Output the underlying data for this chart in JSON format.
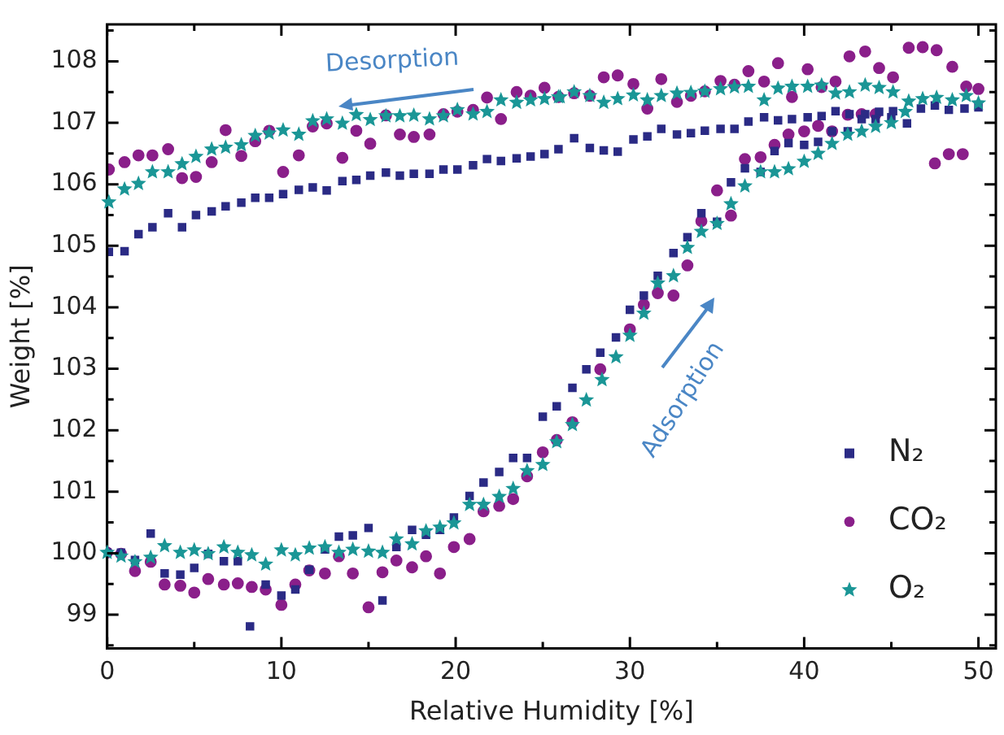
{
  "chart_data": {
    "type": "scatter",
    "xlabel": "Relative Humidity [%]",
    "ylabel": "Weight [%]",
    "xlim": [
      0,
      51
    ],
    "ylim": [
      98.45,
      108.6
    ],
    "xticks": [
      0,
      {
        "value": 5,
        "label": null
      },
      10,
      {
        "value": 15,
        "label": null
      },
      20,
      {
        "value": 25,
        "label": null
      },
      30,
      {
        "value": 35,
        "label": null
      },
      40,
      {
        "value": 45,
        "label": null
      },
      50
    ],
    "yticks": [
      {
        "value": 98.5,
        "label": null
      },
      99,
      {
        "value": 99.5,
        "label": null
      },
      100,
      {
        "value": 100.5,
        "label": null
      },
      101,
      {
        "value": 101.5,
        "label": null
      },
      102,
      {
        "value": 102.5,
        "label": null
      },
      103,
      {
        "value": 103.5,
        "label": null
      },
      104,
      {
        "value": 104.5,
        "label": null
      },
      105,
      {
        "value": 105.5,
        "label": null
      },
      106,
      {
        "value": 106.5,
        "label": null
      },
      107,
      {
        "value": 107.5,
        "label": null
      },
      108,
      {
        "value": 108.5,
        "label": null
      }
    ],
    "grid": false,
    "legend": "bottom right",
    "annotations": [
      "Desorption",
      "Adsorption"
    ],
    "series": [
      {
        "name": "N₂",
        "color": "#2b2b85",
        "marker": "square",
        "x": [
          0.1,
          1,
          1.8,
          2.6,
          3.5,
          4.3,
          5.1,
          6,
          6.8,
          7.7,
          8.5,
          9.3,
          10.1,
          11,
          11.8,
          12.6,
          13.5,
          14.3,
          15.1,
          16,
          16.8,
          17.6,
          18.5,
          19.3,
          20.1,
          21,
          21.8,
          22.6,
          23.5,
          24.3,
          25.1,
          25.9,
          26.8,
          27.7,
          28.5,
          29.3,
          30.2,
          31,
          31.8,
          32.7,
          33.5,
          34.3,
          35.2,
          36,
          36.8,
          37.7,
          38.5,
          39.3,
          40.2,
          41,
          41.8,
          42.6,
          43.5,
          44.3,
          45.1,
          45.9,
          46.7,
          47.5,
          48.3,
          49.2,
          50,
          0,
          0.8,
          1.6,
          2.5,
          3.3,
          4.2,
          5,
          5.8,
          6.7,
          7.5,
          8.2,
          9.1,
          10,
          10.8,
          11.6,
          12.5,
          13.3,
          14.1,
          15,
          15.8,
          16.6,
          17.5,
          18.3,
          19.1,
          19.9,
          20.8,
          21.6,
          22.5,
          23.3,
          24.1,
          25,
          25.8,
          26.7,
          27.5,
          28.3,
          29.2,
          30,
          30.8,
          31.6,
          32.5,
          33.3,
          34.1,
          35,
          35.8,
          36.6,
          37.5,
          38.3,
          39.1,
          40,
          40.8,
          41.6,
          42.5,
          43.3,
          44.1,
          45
        ],
        "values": [
          104.9,
          104.91,
          105.19,
          105.3,
          105.53,
          105.3,
          105.5,
          105.56,
          105.64,
          105.7,
          105.78,
          105.78,
          105.84,
          105.91,
          105.95,
          105.9,
          106.05,
          106.07,
          106.14,
          106.19,
          106.14,
          106.17,
          106.17,
          106.24,
          106.24,
          106.31,
          106.41,
          106.38,
          106.42,
          106.45,
          106.49,
          106.57,
          106.75,
          106.59,
          106.55,
          106.53,
          106.73,
          106.78,
          106.9,
          106.81,
          106.83,
          106.87,
          106.9,
          106.9,
          107.02,
          107.09,
          107.04,
          107.06,
          107.09,
          107.11,
          107.19,
          107.14,
          107.14,
          107.18,
          107.19,
          106.99,
          107.23,
          107.28,
          107.21,
          107.23,
          107.25,
          100.01,
          100.01,
          99.89,
          100.32,
          99.67,
          99.65,
          99.76,
          99.99,
          99.87,
          99.87,
          98.81,
          99.49,
          99.31,
          99.41,
          99.73,
          100.06,
          100.27,
          100.29,
          100.41,
          99.23,
          100.1,
          100.38,
          100.3,
          100.38,
          100.58,
          100.93,
          101.15,
          101.32,
          101.55,
          101.55,
          102.22,
          102.39,
          102.69,
          102.99,
          103.26,
          103.51,
          103.96,
          104.19,
          104.51,
          104.88,
          105.14,
          105.53,
          105.39,
          106.03,
          106.26,
          106.2,
          106.54,
          106.67,
          106.64,
          106.69,
          106.86,
          106.86,
          107.06,
          107.06,
          107.09
        ]
      },
      {
        "name": "CO₂",
        "color": "#8a1f8a",
        "marker": "circle",
        "x": [
          0.1,
          1,
          1.8,
          2.6,
          3.5,
          4.3,
          5.1,
          6,
          6.8,
          7.7,
          8.5,
          9.3,
          10.1,
          11,
          11.8,
          12.6,
          13.5,
          14.3,
          15.1,
          16,
          16.8,
          17.6,
          18.5,
          19.3,
          20.1,
          21,
          21.8,
          22.6,
          23.5,
          24.3,
          25.1,
          25.9,
          26.8,
          27.7,
          28.5,
          29.3,
          30.2,
          31,
          31.8,
          32.7,
          33.5,
          34.3,
          35.2,
          36,
          36.8,
          37.7,
          38.5,
          39.3,
          40.2,
          41,
          41.8,
          42.6,
          43.5,
          44.3,
          45.1,
          46,
          46.8,
          47.6,
          48.5,
          49.3,
          50,
          47.5,
          48.3,
          49.1,
          0,
          0.8,
          1.6,
          2.5,
          3.3,
          4.2,
          5,
          5.8,
          6.7,
          7.5,
          8.3,
          9.1,
          10,
          10.8,
          11.6,
          12.5,
          13.3,
          14.1,
          15,
          15.8,
          16.6,
          17.5,
          18.3,
          19.1,
          19.9,
          20.8,
          21.6,
          22.5,
          23.3,
          24.1,
          25,
          25.8,
          26.7,
          28.3,
          30,
          30.8,
          31.6,
          32.5,
          33.3,
          34.1,
          35,
          35.8,
          36.6,
          37.5,
          38.3,
          39.1,
          40,
          40.8,
          41.6,
          42.5,
          43.3,
          44.1
        ],
        "values": [
          106.24,
          106.36,
          106.47,
          106.47,
          106.57,
          106.1,
          106.12,
          106.36,
          106.88,
          106.46,
          106.7,
          106.87,
          106.2,
          106.47,
          106.94,
          106.99,
          106.43,
          106.87,
          106.66,
          107.12,
          106.81,
          106.77,
          106.81,
          107.14,
          107.18,
          107.21,
          107.41,
          107.06,
          107.5,
          107.44,
          107.57,
          107.42,
          107.48,
          107.44,
          107.74,
          107.77,
          107.63,
          107.23,
          107.71,
          107.34,
          107.44,
          107.51,
          107.68,
          107.62,
          107.84,
          107.67,
          107.97,
          107.42,
          107.87,
          107.58,
          107.67,
          108.08,
          108.16,
          107.89,
          107.74,
          108.22,
          108.23,
          108.18,
          107.91,
          107.59,
          107.55,
          106.34,
          106.49,
          106.49,
          100.01,
          99.99,
          99.71,
          99.86,
          99.49,
          99.47,
          99.36,
          99.58,
          99.49,
          99.51,
          99.45,
          99.41,
          99.16,
          99.49,
          99.72,
          99.67,
          99.95,
          99.67,
          99.12,
          99.69,
          99.88,
          99.77,
          99.95,
          99.67,
          100.1,
          100.23,
          100.68,
          100.77,
          100.88,
          101.25,
          101.64,
          101.84,
          102.13,
          102.99,
          103.64,
          104.04,
          104.23,
          104.19,
          104.68,
          105.4,
          105.9,
          105.49,
          106.41,
          106.44,
          106.64,
          106.81,
          106.86,
          106.95,
          106.86,
          107.13,
          107.14,
          107.14
        ]
      },
      {
        "name": "O₂",
        "color": "#1a9696",
        "marker": "star",
        "x": [
          0.1,
          1,
          1.8,
          2.6,
          3.5,
          4.3,
          5.1,
          6,
          6.8,
          7.7,
          8.5,
          9.3,
          10.1,
          11,
          11.8,
          12.6,
          13.5,
          14.3,
          15.1,
          16,
          16.8,
          17.6,
          18.5,
          19.3,
          20.1,
          21,
          21.8,
          22.6,
          23.5,
          24.3,
          25.1,
          25.9,
          26,
          26.8,
          27.7,
          28.5,
          29.3,
          30.2,
          31,
          31.8,
          32.7,
          33.5,
          34.3,
          35.2,
          36,
          36.8,
          37.7,
          38.5,
          39.3,
          40.2,
          41,
          41.8,
          42.6,
          43.5,
          44.3,
          45.1,
          46,
          46.8,
          47.6,
          48.5,
          49.3,
          50,
          0,
          0.8,
          1.6,
          2.5,
          3.3,
          4.2,
          5,
          5.8,
          6.7,
          7.5,
          8.3,
          9.1,
          10,
          10.8,
          11.6,
          12.5,
          13.3,
          14.1,
          15,
          15.8,
          16.6,
          17.5,
          18.3,
          19.1,
          19.9,
          20.8,
          21.6,
          22.5,
          23.3,
          24.1,
          25,
          25.8,
          26.7,
          27.5,
          28.4,
          29.2,
          30,
          30.8,
          31.6,
          32.5,
          33.3,
          34.1,
          35,
          35.8,
          36.6,
          37.5,
          38.3,
          39.1,
          40,
          40.8,
          41.6,
          42.5,
          43.3,
          44.1,
          45,
          45.8
        ],
        "values": [
          105.71,
          105.92,
          106.01,
          106.2,
          106.2,
          106.33,
          106.45,
          106.57,
          106.6,
          106.64,
          106.79,
          106.83,
          106.88,
          106.81,
          107.03,
          107.06,
          106.99,
          107.13,
          107.05,
          107.11,
          107.11,
          107.12,
          107.06,
          107.11,
          107.21,
          107.14,
          107.18,
          107.37,
          107.33,
          107.37,
          107.39,
          107.42,
          107.42,
          107.5,
          107.44,
          107.33,
          107.39,
          107.45,
          107.37,
          107.44,
          107.48,
          107.49,
          107.51,
          107.55,
          107.58,
          107.59,
          107.37,
          107.56,
          107.59,
          107.59,
          107.61,
          107.48,
          107.5,
          107.61,
          107.57,
          107.5,
          107.35,
          107.39,
          107.41,
          107.37,
          107.44,
          107.32,
          100.01,
          99.95,
          99.86,
          99.93,
          100.12,
          100.01,
          100.05,
          99.99,
          100.1,
          100.01,
          99.97,
          99.82,
          100.05,
          99.97,
          100.08,
          100.1,
          100.01,
          100.06,
          100.03,
          100.01,
          100.23,
          100.15,
          100.36,
          100.42,
          100.49,
          100.79,
          100.79,
          100.92,
          101.05,
          101.34,
          101.44,
          101.81,
          102.09,
          102.49,
          102.82,
          103.19,
          103.54,
          103.9,
          104.39,
          104.51,
          104.97,
          105.23,
          105.36,
          105.68,
          105.97,
          106.2,
          106.2,
          106.25,
          106.37,
          106.5,
          106.66,
          106.81,
          106.86,
          106.94,
          107.0,
          107.18
        ]
      }
    ]
  }
}
